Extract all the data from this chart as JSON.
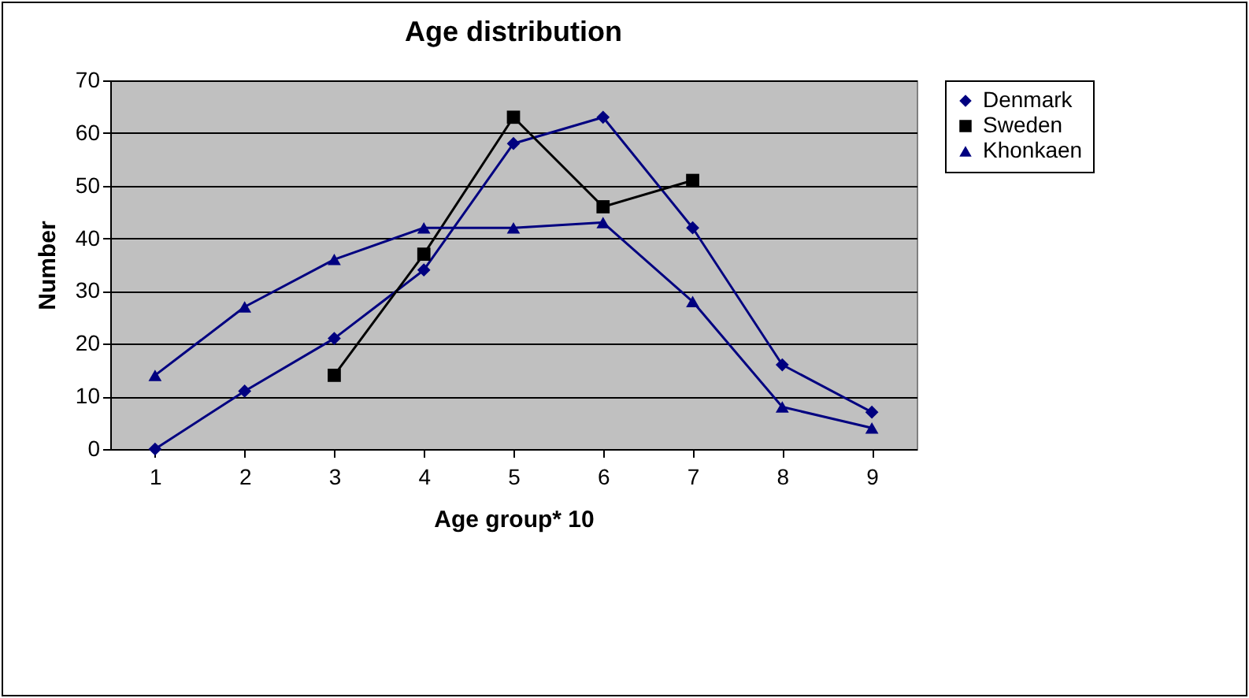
{
  "chart_data": {
    "type": "line",
    "title": "Age distribution",
    "xlabel": "Age group* 10",
    "ylabel": "Number",
    "categories": [
      "1",
      "2",
      "3",
      "4",
      "5",
      "6",
      "7",
      "8",
      "9"
    ],
    "series": [
      {
        "name": "Denmark",
        "color": "#000080",
        "marker": "diamond",
        "values": [
          0,
          11,
          21,
          34,
          58,
          63,
          42,
          16,
          7
        ]
      },
      {
        "name": "Sweden",
        "color": "#000000",
        "marker": "square",
        "values": [
          null,
          null,
          14,
          37,
          63,
          46,
          51,
          null,
          null
        ]
      },
      {
        "name": "Khonkaen",
        "color": "#000080",
        "marker": "triangle",
        "values": [
          14,
          27,
          36,
          42,
          42,
          43,
          28,
          8,
          4
        ]
      }
    ],
    "ylim": [
      0,
      70
    ],
    "yticks": [
      0,
      10,
      20,
      30,
      40,
      50,
      60,
      70
    ],
    "grid": "y",
    "legend": "right"
  }
}
